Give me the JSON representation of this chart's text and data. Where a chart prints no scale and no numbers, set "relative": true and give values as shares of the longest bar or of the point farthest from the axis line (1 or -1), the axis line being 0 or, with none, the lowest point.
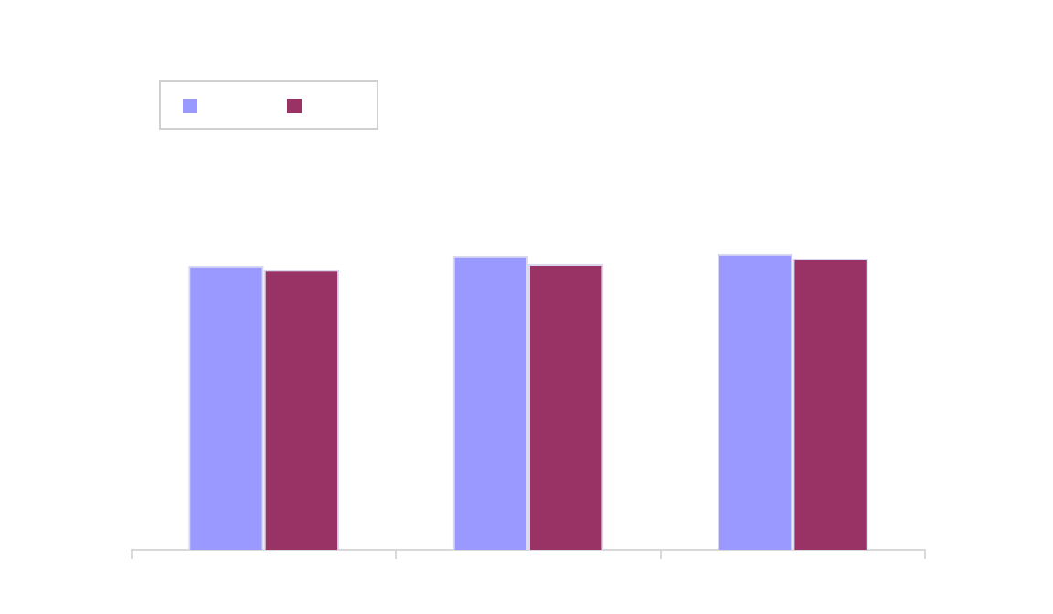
{
  "chart_data": {
    "type": "bar",
    "relative": true,
    "categories": [
      null,
      null,
      null
    ],
    "series": [
      {
        "color": "#9999ff",
        "values": [
          0.96,
          0.994,
          1
        ]
      },
      {
        "color": "#993366",
        "values": [
          0.946,
          0.966,
          0.984
        ]
      }
    ]
  }
}
